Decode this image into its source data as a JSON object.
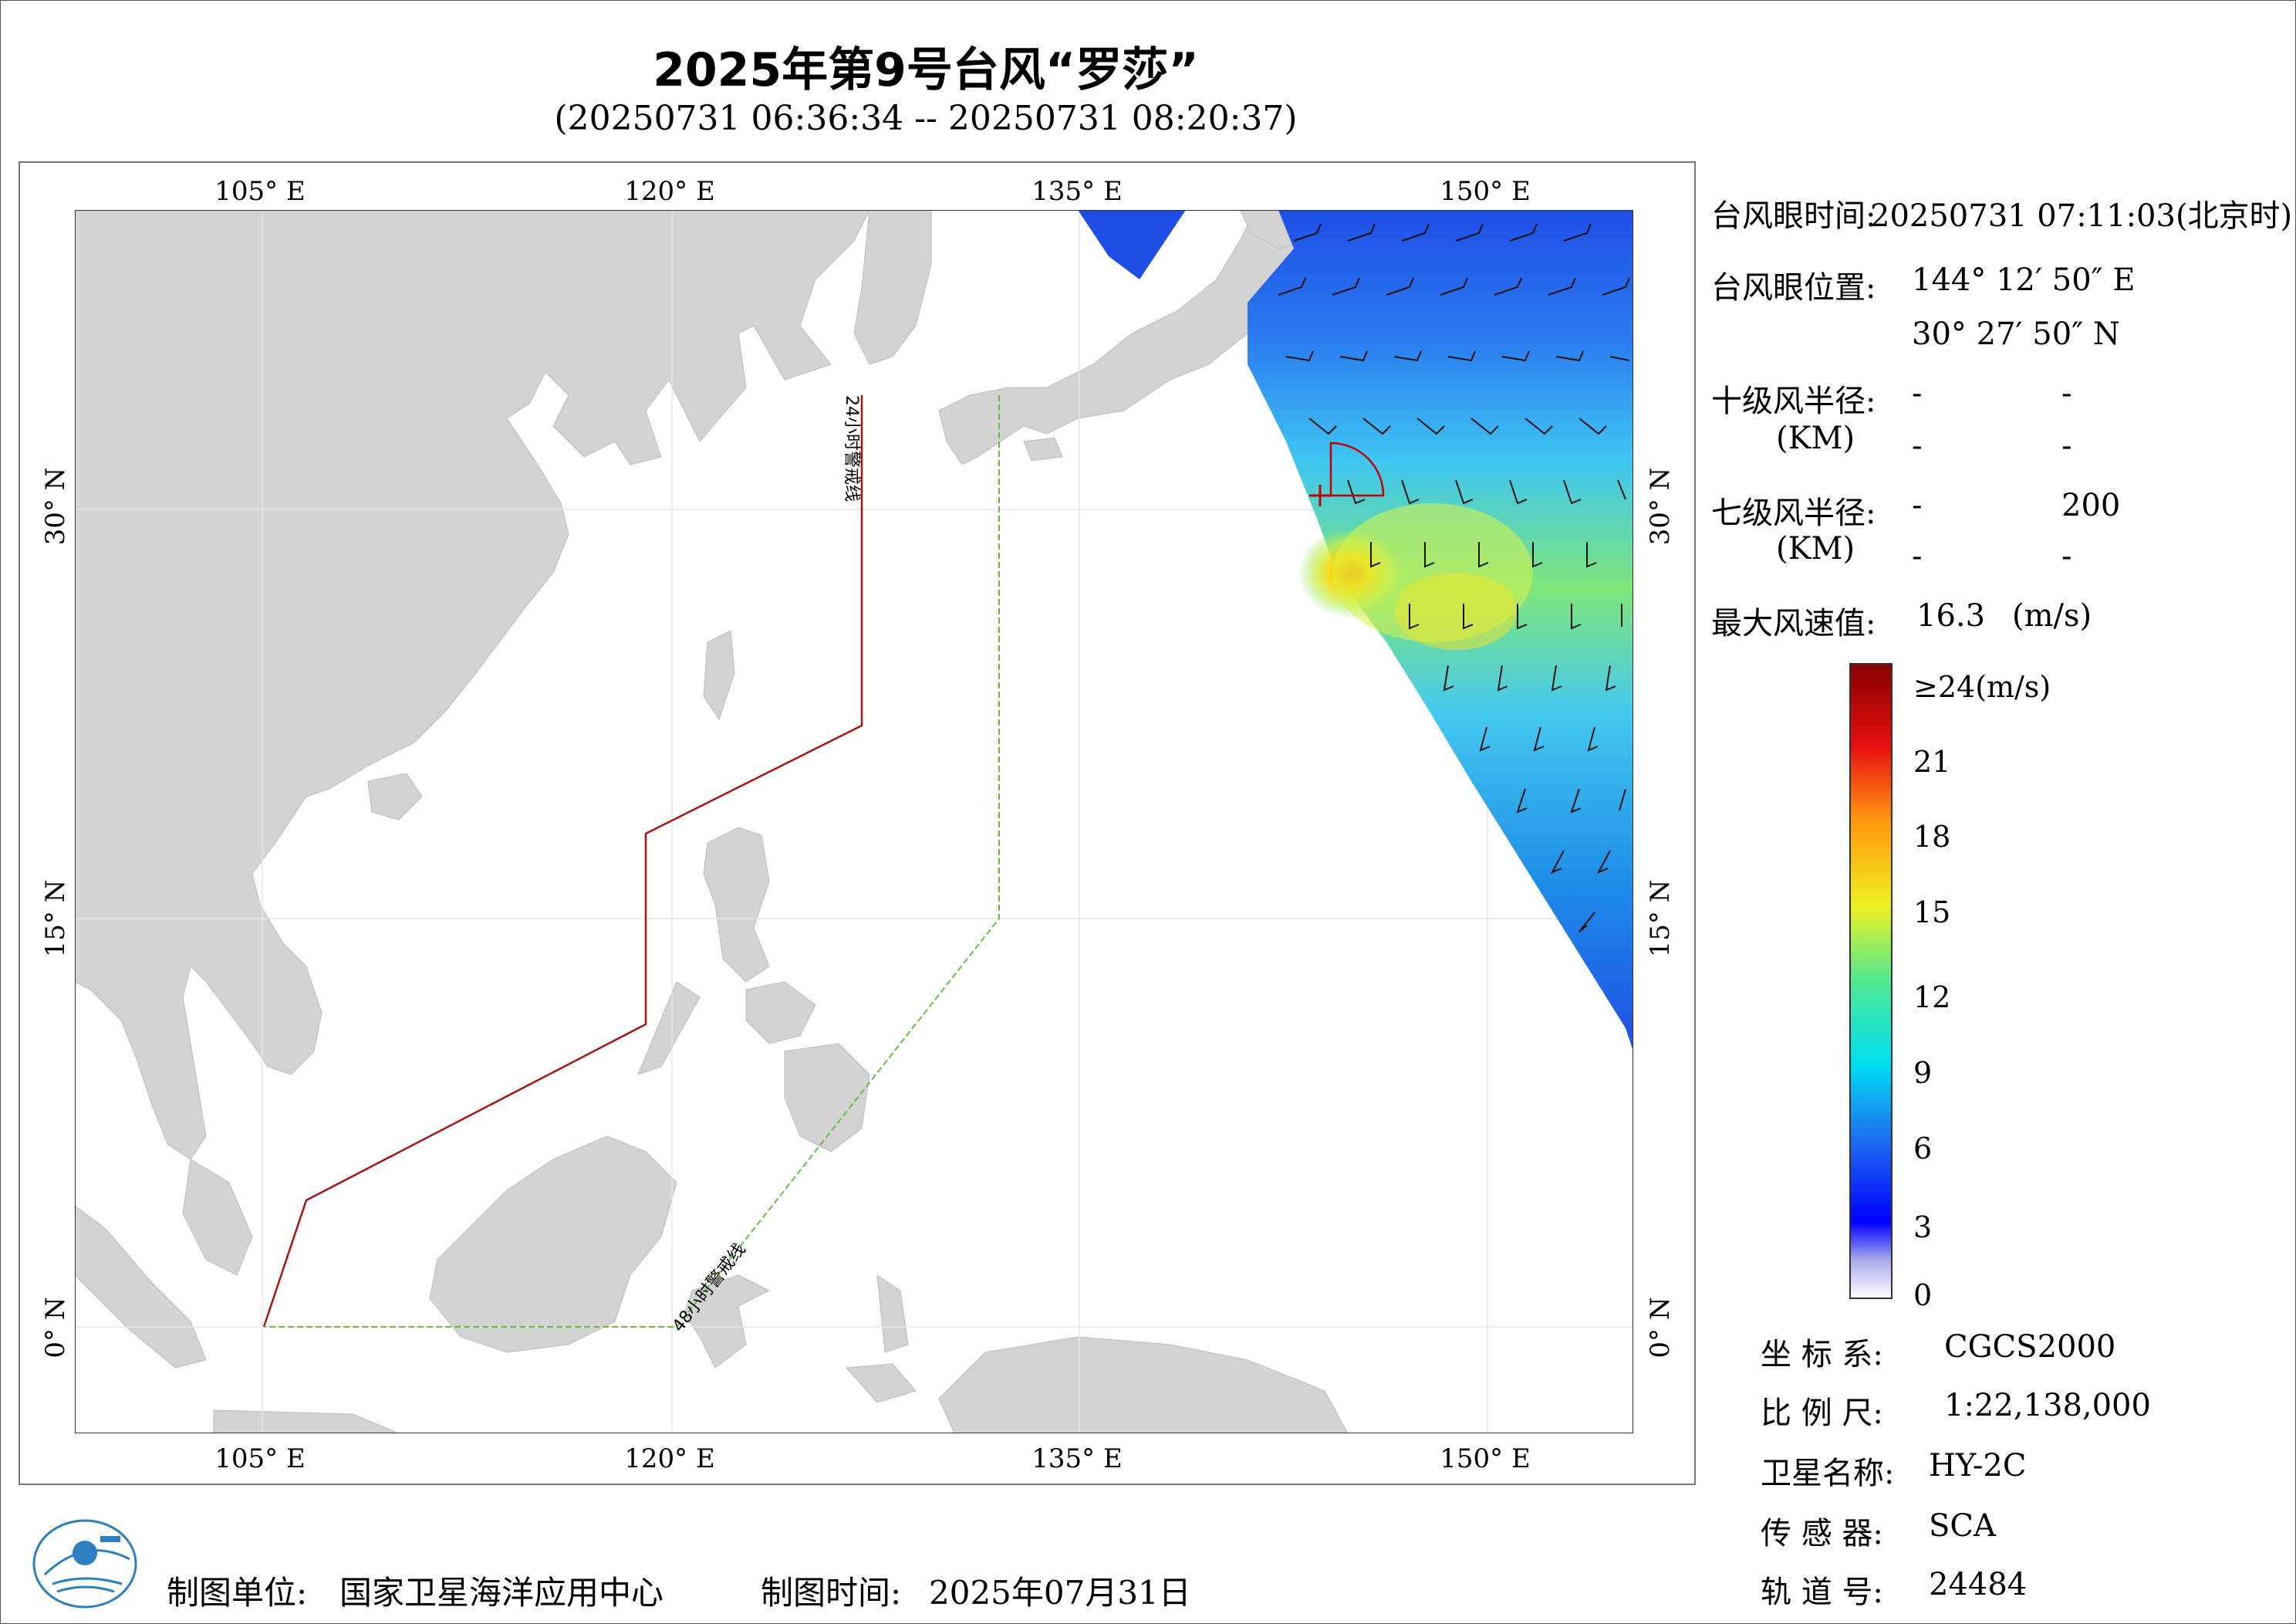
{
  "header": {
    "title": "2025年第9号台风“罗莎”",
    "subtitle": "(20250731 06:36:34 -- 20250731 08:20:37)"
  },
  "map": {
    "lon_ticks_top": [
      "105° E",
      "120° E",
      "135° E",
      "150° E"
    ],
    "lon_ticks_bottom": [
      "105° E",
      "120° E",
      "135° E",
      "150° E"
    ],
    "lat_ticks_left": [
      "30° N",
      "15° N",
      "0° N"
    ],
    "lat_ticks_right": [
      "30° N",
      "15° N",
      "0° N"
    ],
    "warning_line_24h": "24小时警戒线",
    "warning_line_48h": "48小时警戒线",
    "line_color_24h": "#a31515",
    "line_color_48h": "#66bb44",
    "land_color": "#d3d3d3"
  },
  "info": {
    "eye_time_label": "台风眼时间:",
    "eye_time_value": "20250731 07:11:03(北京时)",
    "eye_pos_label": "台风眼位置:",
    "eye_lon": "144° 12′ 50″ E",
    "eye_lat": "30° 27′ 50″ N",
    "r10_label": "十级风半径:",
    "km_label": "(KM)",
    "r10_values": [
      "-",
      "-",
      "-",
      "-"
    ],
    "r7_label": "七级风半径:",
    "r7_values": [
      "-",
      "200",
      "-",
      "-"
    ],
    "max_wind_label": "最大风速值:",
    "max_wind_value": "16.3",
    "max_wind_unit": "(m/s)"
  },
  "colorbar": {
    "top_label": "≥24(m/s)",
    "ticks": [
      "21",
      "18",
      "15",
      "12",
      "9",
      "6",
      "3",
      "0"
    ]
  },
  "meta": {
    "crs_label": "坐 标 系:",
    "crs_value": "CGCS2000",
    "scale_label": "比 例 尺:",
    "scale_value": "1:22,138,000",
    "satellite_label": "卫星名称:",
    "satellite_value": "HY-2C",
    "sensor_label": "传 感 器:",
    "sensor_value": "SCA",
    "orbit_label": "轨 道 号:",
    "orbit_value": "24484"
  },
  "footer": {
    "producer_label": "制图单位:",
    "producer_value": "国家卫星海洋应用中心",
    "date_label": "制图时间:",
    "date_value": "2025年07月31日"
  }
}
